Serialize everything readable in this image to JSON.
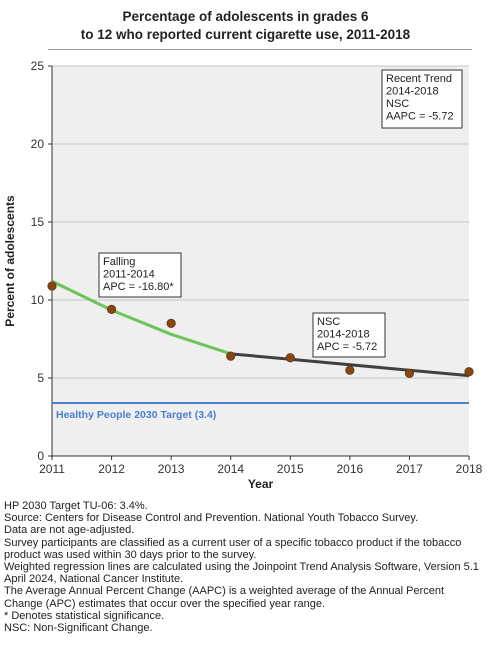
{
  "title_lines": [
    "Percentage of adolescents in grades 6",
    "to 12 who reported current cigarette use, 2011-2018"
  ],
  "chart_data": {
    "type": "line",
    "xlabel": "Year",
    "ylabel": "Percent of adolescents",
    "xlim": [
      2011,
      2018
    ],
    "ylim": [
      0,
      25
    ],
    "x_ticks": [
      "2011",
      "2012",
      "2013",
      "2014",
      "2015",
      "2016",
      "2017",
      "2018"
    ],
    "y_ticks": [
      "0",
      "5",
      "10",
      "15",
      "20",
      "25"
    ],
    "grid": "horizontal",
    "observed": {
      "x": [
        2011,
        2012,
        2013,
        2014,
        2015,
        2016,
        2017,
        2018
      ],
      "y": [
        10.9,
        9.4,
        8.5,
        6.4,
        6.3,
        5.5,
        5.3,
        5.4
      ]
    },
    "segments": [
      {
        "x": [
          2011,
          2012,
          2013,
          2014
        ],
        "y": [
          11.2,
          9.35,
          7.8,
          6.55
        ],
        "color": "#6cc45a"
      },
      {
        "x": [
          2014,
          2015,
          2016,
          2017,
          2018
        ],
        "y": [
          6.55,
          6.2,
          5.85,
          5.5,
          5.15
        ],
        "color": "#404040"
      }
    ],
    "target": {
      "value": 3.4,
      "label": "Healthy People 2030 Target (3.4)",
      "color": "#4a7fd4"
    },
    "annotations": [
      {
        "lines": [
          "Falling",
          "2011-2014",
          "APC = -16.80*"
        ]
      },
      {
        "lines": [
          "NSC",
          "2014-2018",
          "APC = -5.72"
        ]
      },
      {
        "lines": [
          "Recent Trend",
          "2014-2018",
          "NSC",
          "AAPC = -5.72"
        ]
      }
    ],
    "point_color": "#8b4513",
    "plot_bg": "#efefef"
  },
  "notes": [
    "HP 2030 Target TU-06: 3.4%.",
    "Source: Centers for Disease Control and Prevention. National Youth Tobacco Survey.",
    "Data are not age-adjusted.",
    "Survey participants are classified as a current user of a specific tobacco product if the tobacco product was used within 30 days prior to the survey.",
    "Weighted regression lines are calculated using the Joinpoint Trend Analysis Software, Version 5.1 April 2024, National Cancer Institute.",
    "The Average Annual Percent Change (AAPC) is a weighted average of the Annual Percent Change (APC) estimates that occur over the specified year range.",
    "* Denotes statistical significance.",
    "NSC: Non-Significant Change."
  ]
}
